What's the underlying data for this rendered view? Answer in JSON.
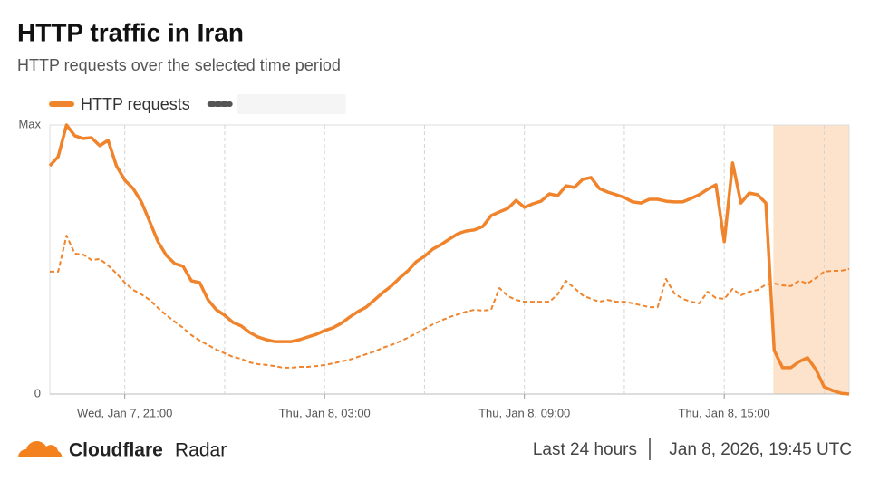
{
  "chart_data": {
    "type": "line",
    "title": "HTTP traffic in Iran",
    "subtitle": "HTTP requests over the selected time period",
    "categories": [
      null,
      null,
      null,
      null,
      null,
      null,
      null,
      null,
      null,
      "Wed, Jan 7, 21:00",
      null,
      null,
      null,
      null,
      null,
      null,
      null,
      null,
      null,
      null,
      null,
      null,
      null,
      null,
      null,
      null,
      null,
      null,
      null,
      null,
      null,
      null,
      null,
      "Thu, Jan 8, 03:00",
      null,
      null,
      null,
      null,
      null,
      null,
      null,
      null,
      null,
      null,
      null,
      null,
      null,
      null,
      null,
      null,
      null,
      null,
      null,
      null,
      null,
      null,
      null,
      "Thu, Jan 8, 09:00",
      null,
      null,
      null,
      null,
      null,
      null,
      null,
      null,
      null,
      null,
      null,
      null,
      null,
      null,
      null,
      null,
      null,
      null,
      null,
      null,
      null,
      null,
      null,
      "Thu, Jan 8, 15:00",
      null,
      null,
      null,
      null,
      null,
      null,
      null,
      null,
      null,
      null,
      null,
      null,
      null,
      null,
      null
    ],
    "series": [
      {
        "name": "HTTP requests",
        "color": "#f0842c",
        "dash": false,
        "values": [
          84.8,
          88.2,
          100,
          96,
          95,
          95.3,
          92.3,
          94.3,
          84.8,
          79.5,
          76.4,
          71.4,
          64,
          56.6,
          51.5,
          48.5,
          47.5,
          42.1,
          41.4,
          35,
          31.3,
          29.3,
          26.6,
          25.3,
          22.9,
          21.2,
          20.2,
          19.5,
          19.5,
          19.5,
          20.2,
          21.2,
          22.2,
          23.6,
          24.6,
          26.3,
          28.6,
          30.6,
          32.3,
          35,
          37.7,
          40.1,
          43.1,
          45.8,
          49.2,
          51.2,
          53.9,
          55.6,
          57.6,
          59.6,
          60.6,
          61,
          62.3,
          66.3,
          67.7,
          69,
          72,
          69.4,
          70.7,
          71.7,
          74.4,
          73.7,
          77.4,
          76.8,
          79.8,
          80.5,
          76.4,
          75.1,
          74.1,
          73.1,
          71.4,
          71,
          72.4,
          72.4,
          71.7,
          71.4,
          71.4,
          72.7,
          74.1,
          76.1,
          77.8,
          56.6,
          85.9,
          71,
          74.7,
          74.1,
          71,
          16.2,
          9.8,
          9.8,
          12.1,
          13.5,
          9.1,
          2.7,
          1.3,
          0.3,
          0
        ]
      },
      {
        "color": "#f0842c",
        "dash": true,
        "values": [
          45.5,
          45.5,
          58.9,
          52.2,
          51.9,
          49.8,
          50.2,
          47.8,
          44.8,
          41.4,
          38.7,
          37,
          35,
          32,
          29.3,
          26.9,
          24.6,
          21.9,
          19.9,
          18.2,
          16.5,
          15.2,
          13.8,
          13.1,
          11.8,
          11.1,
          10.8,
          10.4,
          9.8,
          9.8,
          10.1,
          10.1,
          10.4,
          10.8,
          11.4,
          12.1,
          12.8,
          13.8,
          14.8,
          15.8,
          17.2,
          18.2,
          19.5,
          20.9,
          22.6,
          24.2,
          25.9,
          27.3,
          28.6,
          29.6,
          30.6,
          31.3,
          31,
          31.3,
          39.4,
          36.4,
          35,
          34.3,
          34.3,
          34.3,
          34.3,
          37,
          42.1,
          39.4,
          36.7,
          35.4,
          34.3,
          35,
          34.3,
          34.3,
          33.7,
          33,
          32.3,
          32.3,
          42.8,
          37.4,
          35.4,
          34.3,
          33.7,
          38,
          35.7,
          35.4,
          39.1,
          36.7,
          38,
          38.7,
          40.7,
          41.1,
          40.4,
          40.1,
          42.1,
          41.1,
          43.1,
          45.5,
          45.8,
          45.8,
          46.5
        ]
      }
    ],
    "ylim": [
      0,
      100
    ],
    "yticks": [
      0,
      {
        "value": 100,
        "label": "Max"
      }
    ],
    "highlight": [
      87,
      96
    ],
    "highlight_color": "#fde3cc",
    "grid": true
  },
  "footer": {
    "brand": "Cloudflare",
    "product": "Radar",
    "range": "Last 24 hours",
    "timestamp": "Jan 8, 2026, 19:45 UTC"
  }
}
